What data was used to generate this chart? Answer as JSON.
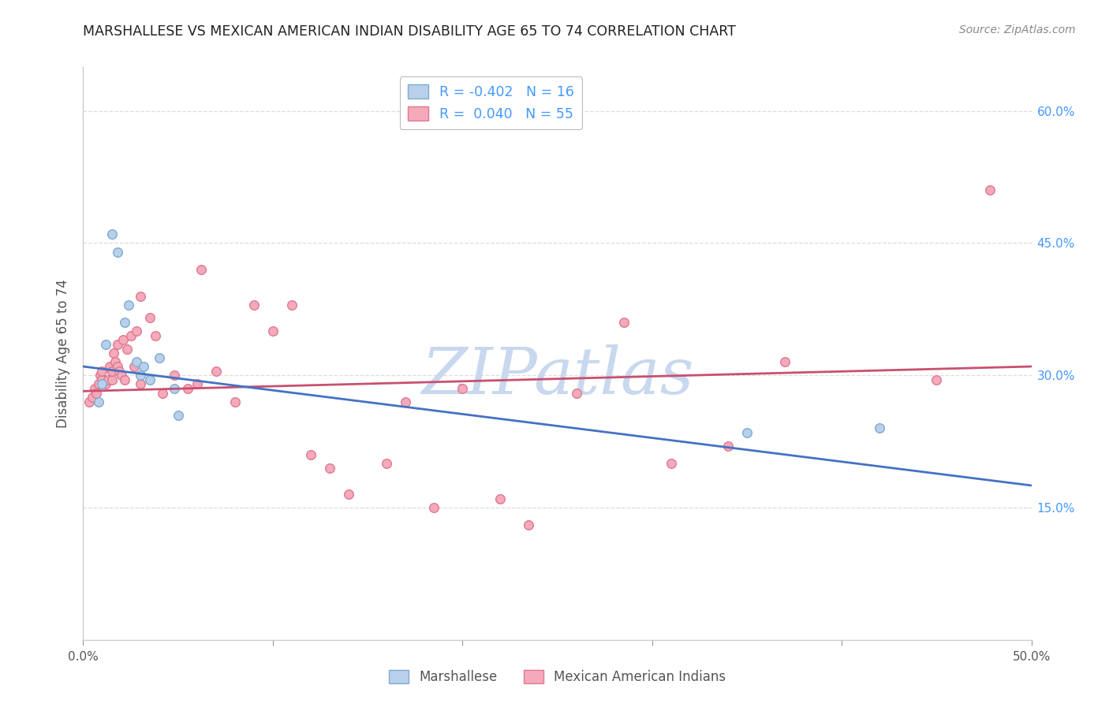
{
  "title": "MARSHALLESE VS MEXICAN AMERICAN INDIAN DISABILITY AGE 65 TO 74 CORRELATION CHART",
  "source": "Source: ZipAtlas.com",
  "ylabel": "Disability Age 65 to 74",
  "xlim": [
    0.0,
    0.5
  ],
  "ylim": [
    0.0,
    0.65
  ],
  "xticks": [
    0.0,
    0.1,
    0.2,
    0.3,
    0.4,
    0.5
  ],
  "xtick_labels": [
    "0.0%",
    "",
    "",
    "",
    "",
    "50.0%"
  ],
  "ytick_right": [
    0.15,
    0.3,
    0.45,
    0.6
  ],
  "ytick_right_labels": [
    "15.0%",
    "30.0%",
    "45.0%",
    "60.0%"
  ],
  "blue_x": [
    0.008,
    0.01,
    0.012,
    0.015,
    0.018,
    0.022,
    0.024,
    0.028,
    0.03,
    0.032,
    0.035,
    0.04,
    0.048,
    0.05,
    0.35,
    0.42
  ],
  "blue_y": [
    0.27,
    0.29,
    0.335,
    0.46,
    0.44,
    0.36,
    0.38,
    0.315,
    0.3,
    0.31,
    0.295,
    0.32,
    0.285,
    0.255,
    0.235,
    0.24
  ],
  "pink_x": [
    0.003,
    0.005,
    0.006,
    0.007,
    0.008,
    0.009,
    0.01,
    0.01,
    0.012,
    0.013,
    0.014,
    0.015,
    0.015,
    0.016,
    0.017,
    0.018,
    0.018,
    0.019,
    0.02,
    0.021,
    0.022,
    0.023,
    0.025,
    0.027,
    0.028,
    0.03,
    0.03,
    0.035,
    0.038,
    0.042,
    0.048,
    0.055,
    0.06,
    0.062,
    0.07,
    0.08,
    0.09,
    0.1,
    0.11,
    0.12,
    0.13,
    0.14,
    0.16,
    0.17,
    0.185,
    0.2,
    0.22,
    0.235,
    0.26,
    0.285,
    0.31,
    0.34,
    0.37,
    0.45,
    0.478
  ],
  "pink_y": [
    0.27,
    0.275,
    0.285,
    0.28,
    0.29,
    0.3,
    0.295,
    0.305,
    0.29,
    0.295,
    0.31,
    0.295,
    0.305,
    0.325,
    0.315,
    0.31,
    0.335,
    0.305,
    0.3,
    0.34,
    0.295,
    0.33,
    0.345,
    0.31,
    0.35,
    0.39,
    0.29,
    0.365,
    0.345,
    0.28,
    0.3,
    0.285,
    0.29,
    0.42,
    0.305,
    0.27,
    0.38,
    0.35,
    0.38,
    0.21,
    0.195,
    0.165,
    0.2,
    0.27,
    0.15,
    0.285,
    0.16,
    0.13,
    0.28,
    0.36,
    0.2,
    0.22,
    0.315,
    0.295,
    0.51
  ],
  "blue_trend_x": [
    0.0,
    0.5
  ],
  "blue_trend_y": [
    0.31,
    0.175
  ],
  "pink_trend_x": [
    0.0,
    0.5
  ],
  "pink_trend_y": [
    0.282,
    0.31
  ],
  "blue_fill": "#b8d0ea",
  "blue_edge": "#7eabd0",
  "pink_fill": "#f4aabb",
  "pink_edge": "#e07890",
  "blue_line": "#4472c4",
  "pink_line": "#c85070",
  "marker_size": 70,
  "watermark_text": "ZIPatlas",
  "watermark_color": "#c8d8ee",
  "bg": "#ffffff",
  "grid_color": "#dddddd",
  "legend_text_color": "#4499ff"
}
